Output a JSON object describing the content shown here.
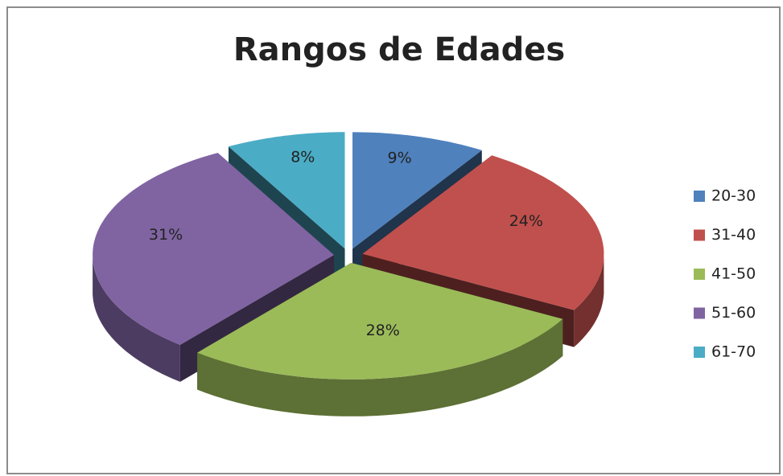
{
  "chart_data": {
    "type": "pie",
    "title": "Rangos de Edades",
    "categories": [
      "20-30",
      "31-40",
      "41-50",
      "51-60",
      "61-70"
    ],
    "values": [
      9,
      24,
      28,
      31,
      8
    ],
    "value_labels": [
      "9%",
      "24%",
      "28%",
      "31%",
      "8%"
    ],
    "colors": [
      "#4f81bd",
      "#c0504d",
      "#9bbb59",
      "#8064a2",
      "#4bacc6"
    ],
    "legend": "right"
  }
}
